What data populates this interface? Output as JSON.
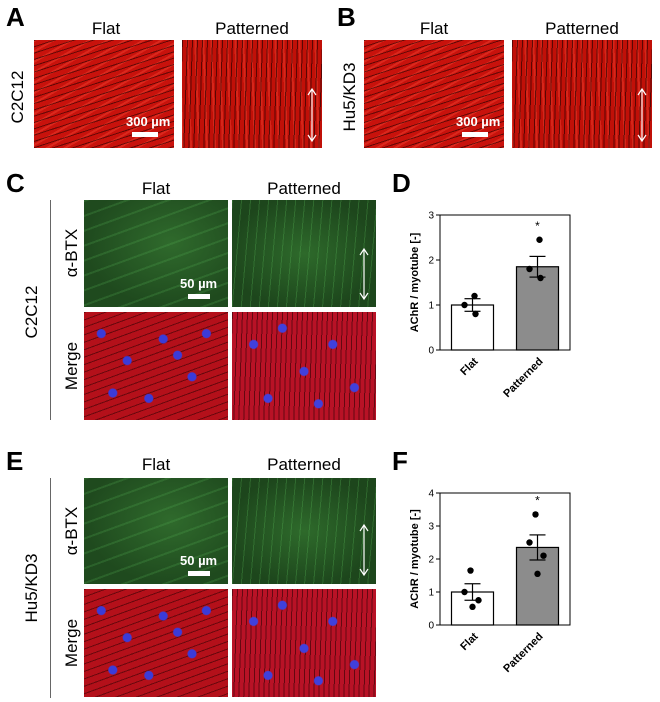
{
  "panels": {
    "A": {
      "label": "A",
      "row_label": "C2C12",
      "col_flat": "Flat",
      "col_patterned": "Patterned",
      "scale": "300 µm"
    },
    "B": {
      "label": "B",
      "row_label": "Hu5/KD3",
      "col_flat": "Flat",
      "col_patterned": "Patterned",
      "scale": "300 µm"
    },
    "C": {
      "label": "C",
      "row_label": "C2C12",
      "col_flat": "Flat",
      "col_patterned": "Patterned",
      "stain_top": "α-BTX",
      "stain_bottom": "Merge",
      "scale": "50 µm"
    },
    "D": {
      "label": "D"
    },
    "E": {
      "label": "E",
      "row_label": "Hu5/KD3",
      "col_flat": "Flat",
      "col_patterned": "Patterned",
      "stain_top": "α-BTX",
      "stain_bottom": "Merge",
      "scale": "50 µm"
    },
    "F": {
      "label": "F"
    }
  },
  "chart_data": [
    {
      "type": "bar",
      "panel": "D",
      "categories": [
        "Flat",
        "Patterned"
      ],
      "values": [
        1.0,
        1.85
      ],
      "errors": [
        0.14,
        0.23
      ],
      "points": [
        [
          1.2,
          1.0,
          0.8
        ],
        [
          2.45,
          1.8,
          1.6
        ]
      ],
      "significance": [
        "",
        "*"
      ],
      "ylabel": "AChR / myotube [-]",
      "ylim": [
        0,
        3
      ],
      "yticks": [
        0,
        1,
        2,
        3
      ],
      "colors": [
        "#ffffff",
        "#8c8c8c"
      ]
    },
    {
      "type": "bar",
      "panel": "F",
      "categories": [
        "Flat",
        "Patterned"
      ],
      "values": [
        1.0,
        2.35
      ],
      "errors": [
        0.25,
        0.38
      ],
      "points": [
        [
          1.65,
          1.0,
          0.75,
          0.55
        ],
        [
          3.35,
          2.5,
          2.1,
          1.55
        ]
      ],
      "significance": [
        "",
        "*"
      ],
      "ylabel": "AChR / myotube [-]",
      "ylim": [
        0,
        4
      ],
      "yticks": [
        0,
        1,
        2,
        3,
        4
      ],
      "colors": [
        "#ffffff",
        "#8c8c8c"
      ]
    }
  ]
}
